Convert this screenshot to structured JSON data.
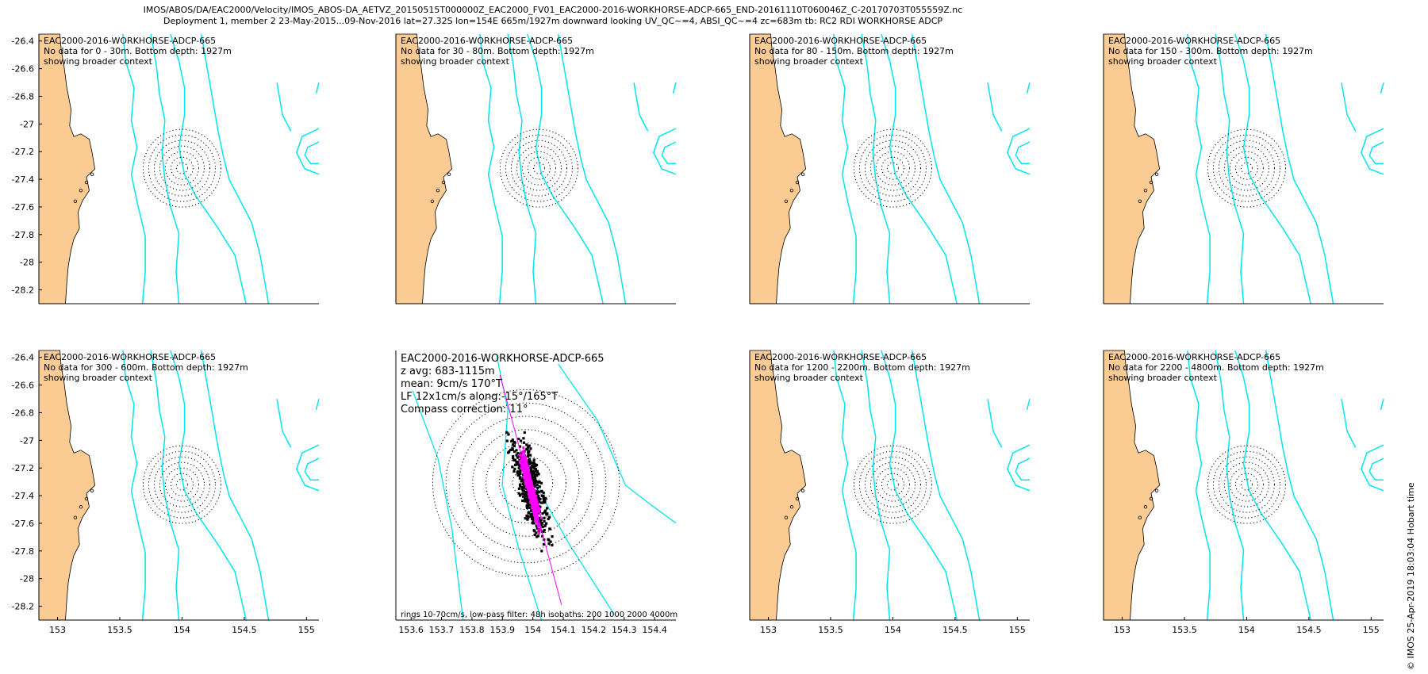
{
  "header": {
    "line1": "IMOS/ABOS/DA/EAC2000/Velocity/IMOS_ABOS-DA_AETVZ_20150515T000000Z_EAC2000_FV01_EAC2000-2016-WORKHORSE-ADCP-665_END-20161110T060046Z_C-20170703T055559Z.nc",
    "line2": "Deployment 1, member 2 23-May-2015...09-Nov-2016 lat=27.32S lon=154E 665m/1927m downward looking UV_QC~=4, ABSI_QC~=4 zc=683m tb: RC2 RDI WORKHORSE ADCP"
  },
  "footer": {
    "credit": "© IMOS 25-Apr-2019 18:03:04 Hobart time"
  },
  "colors": {
    "land": "#FBCB94",
    "isobath": "#00E5EE",
    "trajectory": "#FF00FF",
    "scatter": "#000000",
    "rings": "#000000"
  },
  "chart_data": [
    {
      "type": "scatter",
      "panel": 1,
      "lines": [
        "EAC2000-2016-WORKHORSE-ADCP-665",
        "No data for 0 - 30m. Bottom depth: 1927m",
        "showing broader context"
      ],
      "yticks": [
        "-26.4",
        "-26.6",
        "-26.8",
        "-27",
        "-27.2",
        "-27.4",
        "-27.6",
        "-27.8",
        "-28",
        "-28.2"
      ],
      "xticks": [],
      "ylim": [
        -28.3,
        -26.35
      ],
      "xlim": [
        152.85,
        155.1
      ],
      "center": [
        154,
        -27.32
      ]
    },
    {
      "type": "scatter",
      "panel": 2,
      "lines": [
        "EAC2000-2016-WORKHORSE-ADCP-665",
        "No data for 30 - 80m. Bottom depth: 1927m",
        "showing broader context"
      ],
      "yticks": [],
      "xticks": [],
      "ylim": [
        -28.3,
        -26.35
      ],
      "xlim": [
        152.85,
        155.1
      ],
      "center": [
        154,
        -27.32
      ]
    },
    {
      "type": "scatter",
      "panel": 3,
      "lines": [
        "EAC2000-2016-WORKHORSE-ADCP-665",
        "No data for 80 - 150m. Bottom depth: 1927m",
        "showing broader context"
      ],
      "yticks": [],
      "xticks": [],
      "ylim": [
        -28.3,
        -26.35
      ],
      "xlim": [
        152.85,
        155.1
      ],
      "center": [
        154,
        -27.32
      ]
    },
    {
      "type": "scatter",
      "panel": 4,
      "lines": [
        "EAC2000-2016-WORKHORSE-ADCP-665",
        "No data for 150 - 300m. Bottom depth: 1927m",
        "showing broader context"
      ],
      "yticks": [],
      "xticks": [],
      "ylim": [
        -28.3,
        -26.35
      ],
      "xlim": [
        152.85,
        155.1
      ],
      "center": [
        154,
        -27.32
      ]
    },
    {
      "type": "scatter",
      "panel": 5,
      "lines": [
        "EAC2000-2016-WORKHORSE-ADCP-665",
        "No data for 300 - 600m. Bottom depth: 1927m",
        "showing broader context"
      ],
      "yticks": [
        "-26.4",
        "-26.6",
        "-26.8",
        "-27",
        "-27.2",
        "-27.4",
        "-27.6",
        "-27.8",
        "-28",
        "-28.2"
      ],
      "xticks": [
        "153",
        "153.5",
        "154",
        "154.5",
        "155"
      ],
      "ylim": [
        -28.3,
        -26.35
      ],
      "xlim": [
        152.85,
        155.1
      ],
      "center": [
        154,
        -27.32
      ]
    },
    {
      "type": "scatter",
      "panel": 6,
      "lines": [
        "EAC2000-2016-WORKHORSE-ADCP-665",
        "z avg: 683-1115m",
        "mean: 9cm/s 170°T",
        "LF 12x1cm/s along:-15°/165°T",
        "Compass correction: 11°"
      ],
      "bottom_note": "rings 10-70cm/s, low-pass filter: 48h isobaths: 200 1000 2000 4000m",
      "xticks": [
        "153.6",
        "153.7",
        "153.8",
        "153.9",
        "154",
        "154.1",
        "154.2",
        "154.3",
        "154.4"
      ],
      "xlim": [
        153.55,
        154.47
      ],
      "center": [
        154,
        -27.32
      ],
      "rings_cm_s": [
        10,
        20,
        30,
        40,
        50,
        60,
        70
      ],
      "mean_velocity": {
        "speed_cm_s": 9,
        "direction_degT": 170
      },
      "principal_axis_degT": 165
    },
    {
      "type": "scatter",
      "panel": 7,
      "lines": [
        "EAC2000-2016-WORKHORSE-ADCP-665",
        "No data for 1200 - 2200m. Bottom depth: 1927m",
        "showing broader context"
      ],
      "yticks": [],
      "xticks": [
        "153",
        "153.5",
        "154",
        "154.5",
        "155"
      ],
      "ylim": [
        -28.3,
        -26.35
      ],
      "xlim": [
        152.85,
        155.1
      ],
      "center": [
        154,
        -27.32
      ]
    },
    {
      "type": "scatter",
      "panel": 8,
      "lines": [
        "EAC2000-2016-WORKHORSE-ADCP-665",
        "No data for 2200 - 4800m. Bottom depth: 1927m",
        "showing broader context"
      ],
      "yticks": [],
      "xticks": [
        "153",
        "153.5",
        "154",
        "154.5",
        "155"
      ],
      "ylim": [
        -28.3,
        -26.35
      ],
      "xlim": [
        152.85,
        155.1
      ],
      "center": [
        154,
        -27.32
      ]
    }
  ]
}
